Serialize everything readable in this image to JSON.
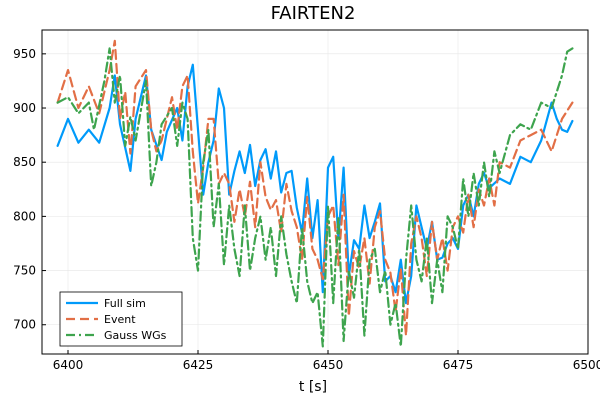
{
  "chart_data": {
    "type": "line",
    "title": "FAIRTEN2",
    "xlabel": "t [s]",
    "ylabel": "",
    "xlim": [
      6395,
      6500
    ],
    "ylim": [
      673,
      972
    ],
    "xticks": [
      6400,
      6425,
      6450,
      6475,
      6500
    ],
    "yticks": [
      700,
      750,
      800,
      850,
      900,
      950
    ],
    "grid": true,
    "legend_position": "bottom-left",
    "series": [
      {
        "name": "Full sim",
        "color": "#009AFA",
        "style": "solid",
        "x": [
          6398,
          6400,
          6402,
          6404,
          6406,
          6408,
          6409,
          6410,
          6412,
          6413,
          6415,
          6416,
          6418,
          6419,
          6421,
          6422,
          6423,
          6424,
          6425,
          6426,
          6427,
          6428,
          6429,
          6430,
          6431,
          6432,
          6433,
          6434,
          6435,
          6436,
          6437,
          6438,
          6439,
          6440,
          6441,
          6442,
          6443,
          6444,
          6445,
          6446,
          6447,
          6448,
          6449,
          6450,
          6451,
          6452,
          6453,
          6454,
          6455,
          6456,
          6457,
          6458,
          6459,
          6460,
          6461,
          6462,
          6463,
          6464,
          6465,
          6466,
          6467,
          6468,
          6469,
          6470,
          6471,
          6472,
          6473,
          6474,
          6475,
          6476,
          6477,
          6478,
          6479,
          6480,
          6481,
          6483,
          6485,
          6487,
          6489,
          6491,
          6493,
          6494,
          6495,
          6496,
          6497
        ],
        "y": [
          865,
          890,
          868,
          880,
          868,
          900,
          930,
          885,
          842,
          890,
          930,
          880,
          852,
          878,
          900,
          870,
          920,
          940,
          880,
          820,
          850,
          870,
          918,
          900,
          820,
          842,
          860,
          840,
          866,
          828,
          852,
          862,
          835,
          860,
          822,
          840,
          842,
          808,
          785,
          835,
          780,
          815,
          730,
          845,
          855,
          780,
          845,
          745,
          778,
          770,
          810,
          780,
          795,
          812,
          740,
          745,
          730,
          760,
          720,
          745,
          810,
          790,
          770,
          795,
          760,
          762,
          775,
          780,
          770,
          810,
          820,
          800,
          830,
          840,
          826,
          835,
          830,
          855,
          850,
          870,
          905,
          890,
          880,
          878,
          888
        ]
      },
      {
        "name": "Event",
        "color": "#E26F46",
        "style": "dashed",
        "x": [
          6398,
          6400,
          6402,
          6404,
          6406,
          6408,
          6409,
          6410,
          6411,
          6412,
          6413,
          6415,
          6416,
          6417,
          6418,
          6420,
          6421,
          6422,
          6423,
          6424,
          6425,
          6426,
          6427,
          6428,
          6429,
          6430,
          6431,
          6432,
          6433,
          6434,
          6435,
          6436,
          6437,
          6438,
          6439,
          6440,
          6441,
          6442,
          6443,
          6444,
          6445,
          6446,
          6447,
          6448,
          6449,
          6450,
          6451,
          6452,
          6453,
          6454,
          6455,
          6456,
          6457,
          6458,
          6459,
          6460,
          6461,
          6462,
          6463,
          6464,
          6465,
          6466,
          6467,
          6468,
          6469,
          6470,
          6471,
          6472,
          6473,
          6474,
          6475,
          6476,
          6477,
          6478,
          6479,
          6480,
          6481,
          6482,
          6483,
          6485,
          6487,
          6489,
          6491,
          6493,
          6495,
          6497
        ],
        "y": [
          905,
          935,
          900,
          920,
          895,
          935,
          962,
          890,
          915,
          858,
          920,
          935,
          880,
          860,
          870,
          910,
          880,
          920,
          930,
          860,
          812,
          845,
          890,
          890,
          830,
          840,
          830,
          795,
          825,
          800,
          832,
          790,
          850,
          818,
          806,
          815,
          785,
          830,
          805,
          790,
          760,
          818,
          770,
          760,
          742,
          800,
          810,
          755,
          820,
          708,
          768,
          752,
          780,
          738,
          790,
          805,
          760,
          748,
          712,
          752,
          690,
          775,
          800,
          780,
          745,
          795,
          760,
          780,
          750,
          790,
          800,
          785,
          820,
          790,
          825,
          810,
          835,
          810,
          850,
          845,
          870,
          875,
          880,
          860,
          890,
          905
        ]
      },
      {
        "name": "Gauss WGs",
        "color": "#3EA44E",
        "style": "dashdot",
        "x": [
          6398,
          6400,
          6402,
          6404,
          6405,
          6407,
          6408,
          6409,
          6410,
          6411,
          6412,
          6413,
          6415,
          6416,
          6417,
          6418,
          6420,
          6421,
          6422,
          6423,
          6424,
          6425,
          6426,
          6427,
          6428,
          6429,
          6430,
          6431,
          6432,
          6433,
          6434,
          6435,
          6436,
          6437,
          6438,
          6439,
          6440,
          6441,
          6442,
          6443,
          6444,
          6445,
          6446,
          6447,
          6448,
          6449,
          6450,
          6451,
          6452,
          6453,
          6454,
          6455,
          6456,
          6457,
          6458,
          6459,
          6460,
          6461,
          6462,
          6463,
          6464,
          6465,
          6466,
          6467,
          6468,
          6469,
          6470,
          6471,
          6472,
          6473,
          6474,
          6475,
          6476,
          6477,
          6478,
          6479,
          6480,
          6481,
          6482,
          6483,
          6485,
          6487,
          6489,
          6491,
          6493,
          6495,
          6496,
          6497
        ],
        "y": [
          905,
          910,
          895,
          905,
          880,
          925,
          955,
          905,
          930,
          865,
          892,
          870,
          925,
          828,
          850,
          885,
          900,
          865,
          905,
          890,
          780,
          750,
          850,
          880,
          790,
          830,
          755,
          810,
          770,
          745,
          810,
          750,
          780,
          800,
          760,
          790,
          745,
          800,
          765,
          740,
          720,
          790,
          740,
          720,
          730,
          680,
          810,
          720,
          800,
          685,
          750,
          725,
          770,
          690,
          760,
          770,
          730,
          750,
          700,
          720,
          680,
          760,
          810,
          760,
          740,
          780,
          720,
          760,
          730,
          800,
          790,
          770,
          835,
          800,
          840,
          810,
          850,
          818,
          860,
          840,
          875,
          885,
          880,
          905,
          900,
          930,
          952,
          955
        ]
      }
    ]
  }
}
